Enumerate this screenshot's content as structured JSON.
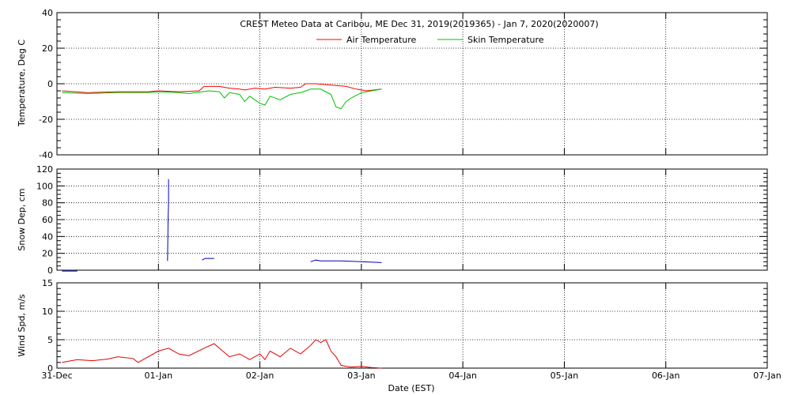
{
  "title": "CREST Meteo Data at Caribou, ME   Dec 31, 2019(2019365) - Jan  7, 2020(2020007)",
  "xlabel": "Date (EST)",
  "x_ticks": [
    "31-Dec",
    "01-Jan",
    "02-Jan",
    "03-Jan",
    "04-Jan",
    "05-Jan",
    "06-Jan",
    "07-Jan"
  ],
  "colors": {
    "air": "#ff0000",
    "skin": "#00c000",
    "snow": "#0000c0",
    "wind": "#e00000"
  },
  "chart_data": [
    {
      "type": "line",
      "ylabel": "Temperature, Deg C",
      "ylim": [
        -40,
        40
      ],
      "yticks": [
        -40,
        -20,
        0,
        20,
        40
      ],
      "x_units": "days since 31-Dec 00:00 EST",
      "grid": true,
      "legend": "top-center",
      "series": [
        {
          "name": "Air Temperature",
          "x": [
            0.05,
            0.3,
            0.6,
            0.9,
            1.0,
            1.2,
            1.4,
            1.45,
            1.6,
            1.7,
            1.8,
            1.85,
            1.95,
            2.05,
            2.15,
            2.3,
            2.4,
            2.45,
            2.55,
            2.65,
            2.75,
            2.85,
            2.95,
            3.05,
            3.2
          ],
          "y": [
            -4,
            -5,
            -4.5,
            -4.5,
            -4,
            -4.5,
            -4,
            -1.5,
            -1.5,
            -2.5,
            -3,
            -3.5,
            -2.5,
            -3,
            -2,
            -2.5,
            -2,
            0,
            0,
            -0.5,
            -1,
            -1.5,
            -3,
            -4,
            -3
          ]
        },
        {
          "name": "Skin Temperature",
          "x": [
            0.05,
            0.3,
            0.6,
            0.9,
            1.0,
            1.2,
            1.3,
            1.5,
            1.6,
            1.65,
            1.7,
            1.8,
            1.85,
            1.9,
            2.0,
            2.05,
            2.1,
            2.2,
            2.3,
            2.4,
            2.5,
            2.6,
            2.7,
            2.75,
            2.8,
            2.85,
            2.9,
            3.0,
            3.1,
            3.2
          ],
          "y": [
            -5,
            -5.5,
            -5,
            -5,
            -4.5,
            -5,
            -5.5,
            -4,
            -4.5,
            -8,
            -5,
            -6,
            -10,
            -7,
            -11,
            -12,
            -7,
            -9,
            -6,
            -5,
            -3,
            -3,
            -6,
            -13,
            -14,
            -10,
            -8,
            -5,
            -4,
            -3
          ]
        }
      ]
    },
    {
      "type": "line",
      "ylabel": "Snow Dep, cm",
      "ylim": [
        0,
        120
      ],
      "yticks": [
        0,
        20,
        40,
        60,
        80,
        100,
        120
      ],
      "x_units": "days since 31-Dec 00:00 EST",
      "grid": true,
      "series": [
        {
          "name": "",
          "x": [
            0.05,
            0.2
          ],
          "y": [
            -1,
            -1
          ]
        },
        {
          "name": "",
          "x": [
            1.09,
            1.095,
            1.1,
            1.1
          ],
          "y": [
            11,
            60,
            80,
            108
          ]
        },
        {
          "name": "",
          "x": [
            1.43,
            1.46,
            1.5,
            1.55
          ],
          "y": [
            12,
            14,
            14,
            14
          ]
        },
        {
          "name": "",
          "x": [
            2.5,
            2.55,
            2.6,
            2.8,
            3.0,
            3.2
          ],
          "y": [
            10,
            12,
            11,
            11,
            10,
            9
          ]
        }
      ]
    },
    {
      "type": "line",
      "ylabel": "Wind Spd, m/s",
      "ylim": [
        0,
        15
      ],
      "yticks": [
        0,
        5,
        10,
        15
      ],
      "x_units": "days since 31-Dec 00:00 EST",
      "grid": true,
      "series": [
        {
          "name": "",
          "x": [
            0.05,
            0.2,
            0.35,
            0.5,
            0.6,
            0.75,
            0.8,
            1.0,
            1.1,
            1.2,
            1.3,
            1.45,
            1.55,
            1.6,
            1.7,
            1.8,
            1.9,
            2.0,
            2.05,
            2.1,
            2.2,
            2.3,
            2.4,
            2.5,
            2.55,
            2.6,
            2.65,
            2.7,
            2.75,
            2.8,
            2.85,
            2.9,
            3.0,
            3.1,
            3.2
          ],
          "y": [
            1,
            1.5,
            1.3,
            1.6,
            2,
            1.7,
            1,
            3,
            3.5,
            2.5,
            2.2,
            3.5,
            4.3,
            3.5,
            2,
            2.5,
            1.5,
            2.5,
            1.5,
            3,
            2,
            3.5,
            2.5,
            4,
            5,
            4.5,
            5,
            3,
            2,
            0.5,
            0.3,
            0.2,
            0.3,
            0.1,
            0
          ]
        }
      ]
    }
  ]
}
